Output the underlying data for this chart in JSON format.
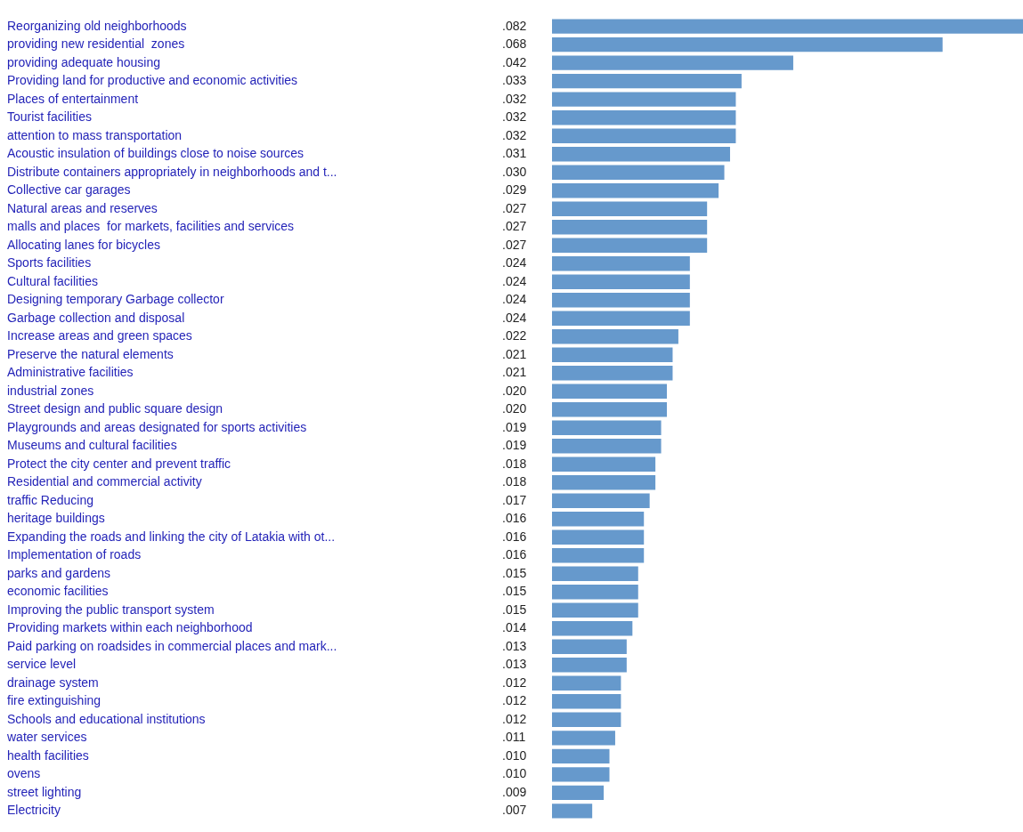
{
  "chart_data": {
    "type": "bar",
    "orientation": "horizontal",
    "color": "#6699cc",
    "categories": [
      "Reorganizing old neighborhoods",
      "providing new residential  zones",
      "providing adequate housing",
      "Providing land for productive and economic activities",
      "Places of entertainment",
      "Tourist facilities",
      "attention to mass transportation",
      "Acoustic insulation of buildings close to noise sources",
      "Distribute containers appropriately in neighborhoods and t...",
      "Collective car garages",
      "Natural areas and reserves",
      "malls and places  for markets, facilities and services",
      "Allocating lanes for bicycles",
      "Sports facilities",
      "Cultural facilities",
      "Designing temporary Garbage collector",
      "Garbage collection and disposal",
      "Increase areas and green spaces",
      "Preserve the natural elements",
      "Administrative facilities",
      "industrial zones",
      "Street design and public square design",
      "Playgrounds and areas designated for sports activities",
      "Museums and cultural facilities",
      "Protect the city center and prevent traffic",
      "Residential and commercial activity",
      "traffic Reducing",
      "heritage buildings",
      "Expanding the roads and linking the city of Latakia with ot...",
      "Implementation of roads",
      "parks and gardens",
      "economic facilities",
      "Improving the public transport system",
      "Providing markets within each neighborhood",
      "Paid parking on roadsides in commercial places and mark...",
      "service level",
      "drainage system",
      "fire extinguishing",
      "Schools and educational institutions",
      "water services",
      "health facilities",
      "ovens",
      "street lighting",
      "Electricity"
    ],
    "values": [
      0.082,
      0.068,
      0.042,
      0.033,
      0.032,
      0.032,
      0.032,
      0.031,
      0.03,
      0.029,
      0.027,
      0.027,
      0.027,
      0.024,
      0.024,
      0.024,
      0.024,
      0.022,
      0.021,
      0.021,
      0.02,
      0.02,
      0.019,
      0.019,
      0.018,
      0.018,
      0.017,
      0.016,
      0.016,
      0.016,
      0.015,
      0.015,
      0.015,
      0.014,
      0.013,
      0.013,
      0.012,
      0.012,
      0.012,
      0.011,
      0.01,
      0.01,
      0.009,
      0.007
    ],
    "value_labels": [
      ".082",
      ".068",
      ".042",
      ".033",
      ".032",
      ".032",
      ".032",
      ".031",
      ".030",
      ".029",
      ".027",
      ".027",
      ".027",
      ".024",
      ".024",
      ".024",
      ".024",
      ".022",
      ".021",
      ".021",
      ".020",
      ".020",
      ".019",
      ".019",
      ".018",
      ".018",
      ".017",
      ".016",
      ".016",
      ".016",
      ".015",
      ".015",
      ".015",
      ".014",
      ".013",
      ".013",
      ".012",
      ".012",
      ".012",
      ".011",
      ".010",
      ".010",
      ".009",
      ".007"
    ]
  }
}
